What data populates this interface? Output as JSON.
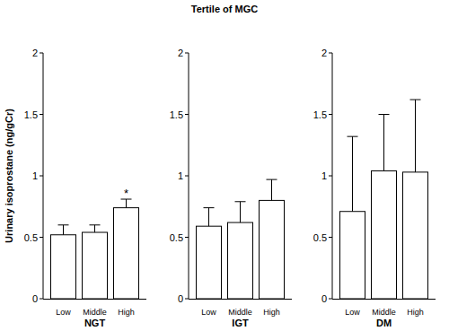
{
  "title": "Tertile of MGC",
  "chart_data": [
    {
      "type": "bar",
      "x_label": "NGT",
      "y_label": "Urinary isoprostane (ng/gCr)",
      "categories": [
        "Low",
        "Middle",
        "High"
      ],
      "values": [
        0.52,
        0.54,
        0.74
      ],
      "errors": [
        0.08,
        0.06,
        0.07
      ],
      "color": "#ffffff",
      "ylim": [
        0,
        2
      ],
      "yticks": [
        0,
        0.5,
        1,
        1.5,
        2
      ],
      "grid": false,
      "annotations": [
        {
          "text": "*",
          "category": "High"
        }
      ]
    },
    {
      "type": "bar",
      "x_label": "IGT",
      "categories": [
        "Low",
        "Middle",
        "High"
      ],
      "values": [
        0.59,
        0.62,
        0.8
      ],
      "errors": [
        0.15,
        0.17,
        0.17
      ],
      "color": "#ffffff",
      "ylim": [
        0,
        2
      ],
      "yticks": [
        0,
        0.5,
        1,
        1.5,
        2
      ],
      "grid": false
    },
    {
      "type": "bar",
      "x_label": "DM",
      "categories": [
        "Low",
        "Middle",
        "High"
      ],
      "values": [
        0.71,
        1.04,
        1.03
      ],
      "errors": [
        0.61,
        0.46,
        0.59
      ],
      "color": "#ffffff",
      "ylim": [
        0,
        2
      ],
      "yticks": [
        0,
        0.5,
        1,
        1.5,
        2
      ],
      "grid": false
    }
  ]
}
